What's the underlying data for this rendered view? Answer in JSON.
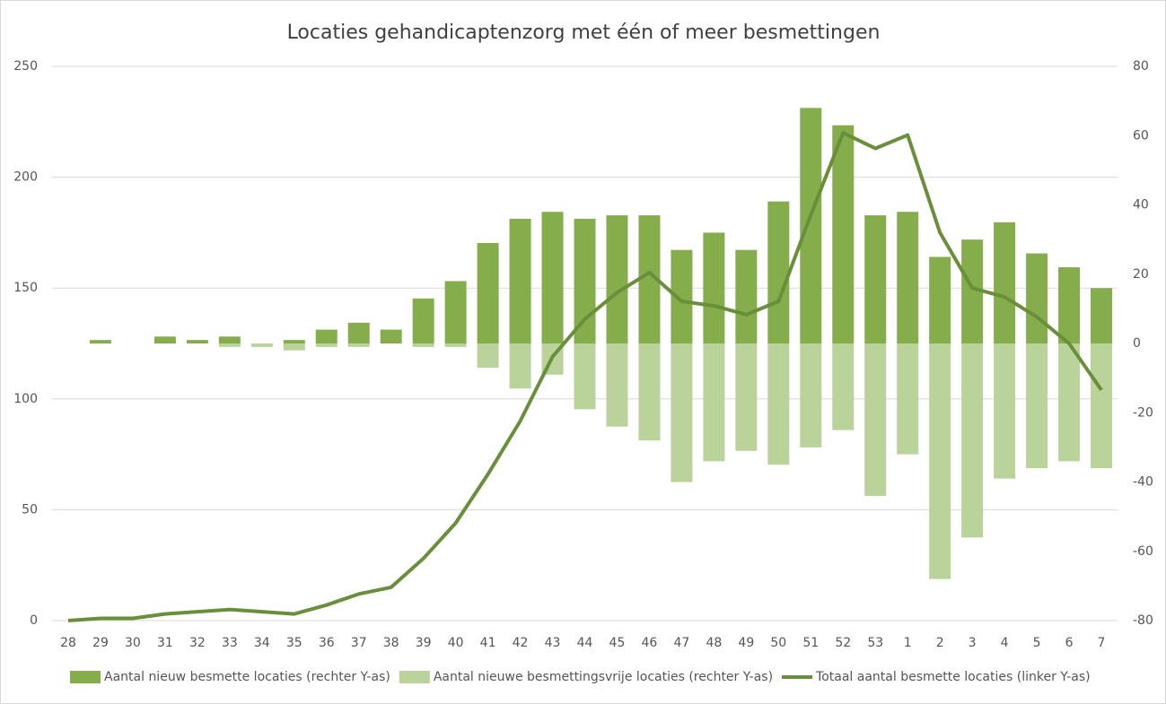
{
  "chart_data": {
    "type": "bar-line",
    "title": "Locaties gehandicaptenzorg met één of meer besmettingen",
    "categories": [
      "28",
      "29",
      "30",
      "31",
      "32",
      "33",
      "34",
      "35",
      "36",
      "37",
      "38",
      "39",
      "40",
      "41",
      "42",
      "43",
      "44",
      "45",
      "46",
      "47",
      "48",
      "49",
      "50",
      "51",
      "52",
      "53",
      "1",
      "2",
      "3",
      "4",
      "5",
      "6",
      "7"
    ],
    "series": [
      {
        "name": "Aantal nieuw besmette locaties (rechter Y-as)",
        "color": "#85ad4c",
        "kind": "bar",
        "axis": "y2",
        "values": [
          0,
          1,
          0,
          2,
          1,
          2,
          0,
          1,
          4,
          6,
          4,
          13,
          18,
          29,
          36,
          38,
          36,
          37,
          37,
          27,
          32,
          27,
          41,
          68,
          63,
          37,
          38,
          25,
          30,
          35,
          26,
          22,
          16
        ]
      },
      {
        "name": "Aantal nieuwe besmettingsvrije locaties (rechter Y-as)",
        "color": "#b9d39a",
        "kind": "bar",
        "axis": "y2",
        "values": [
          0,
          0,
          0,
          0,
          0,
          -1,
          -1,
          -2,
          -1,
          -1,
          0,
          -1,
          -1,
          -7,
          -13,
          -9,
          -19,
          -24,
          -28,
          -40,
          -34,
          -31,
          -35,
          -30,
          -25,
          -44,
          -32,
          -68,
          -56,
          -39,
          -36,
          -34,
          -36
        ]
      },
      {
        "name": "Totaal aantal besmette locaties (linker Y-as)",
        "color": "#6a8f3a",
        "kind": "line",
        "values": [
          0,
          1,
          1,
          3,
          4,
          5,
          4,
          3,
          7,
          12,
          15,
          28,
          44,
          66,
          90,
          119,
          136,
          148,
          157,
          144,
          142,
          138,
          144,
          183,
          220,
          213,
          219,
          175,
          150,
          146,
          137,
          125,
          104
        ]
      }
    ],
    "ylim": [
      0,
      250
    ],
    "yticks": [
      0,
      50,
      100,
      150,
      200,
      250
    ],
    "y2lim": [
      -80,
      80
    ],
    "y2ticks": [
      -80,
      -60,
      -40,
      -20,
      0,
      20,
      40,
      60,
      80
    ],
    "grid": true,
    "legend": "bottom"
  }
}
